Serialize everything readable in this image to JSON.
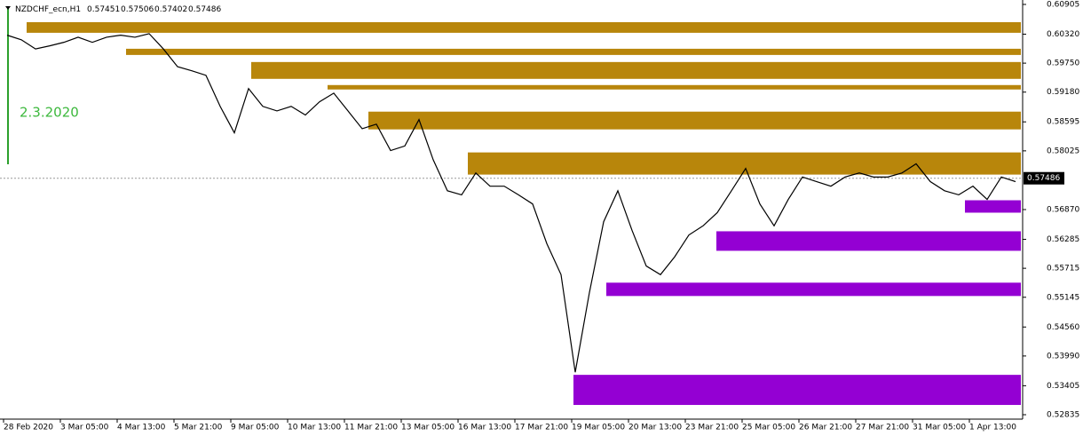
{
  "chart_data": {
    "type": "line",
    "symbol": "NZDCHF_ecn,H1",
    "ohlc": [
      0.57451,
      0.57506,
      0.57402,
      0.57486
    ],
    "annotation": "2.3.2020",
    "last_price": 0.57486,
    "categories": [
      "28 Feb 2020",
      null,
      null,
      null,
      "3 Mar 05:00",
      null,
      null,
      null,
      "4 Mar 13:00",
      null,
      null,
      null,
      "5 Mar 21:00",
      null,
      null,
      null,
      "9 Mar 05:00",
      null,
      null,
      null,
      "10 Mar 13:00",
      null,
      null,
      null,
      "11 Mar 21:00",
      null,
      null,
      null,
      "13 Mar 05:00",
      null,
      null,
      null,
      "16 Mar 13:00",
      null,
      null,
      null,
      "17 Mar 21:00",
      null,
      null,
      null,
      "19 Mar 05:00",
      null,
      null,
      null,
      "20 Mar 13:00",
      null,
      null,
      null,
      "23 Mar 21:00",
      null,
      null,
      null,
      "25 Mar 05:00",
      null,
      null,
      null,
      "26 Mar 21:00",
      null,
      null,
      null,
      "27 Mar 21:00",
      null,
      null,
      null,
      "31 Mar 05:00",
      null,
      null,
      null,
      "1 Apr 13:00",
      null,
      null,
      null
    ],
    "series": [
      {
        "color": "#000000",
        "values": [
          0.603,
          0.6021,
          0.6003,
          0.6009,
          0.6016,
          0.6026,
          0.6016,
          0.6026,
          0.603,
          0.6026,
          0.6033,
          0.6003,
          0.5968,
          0.596,
          0.5951,
          0.589,
          0.5838,
          0.5925,
          0.589,
          0.5881,
          0.589,
          0.5873,
          0.5899,
          0.5916,
          0.5881,
          0.5846,
          0.5855,
          0.5803,
          0.5812,
          0.5864,
          0.5785,
          0.5724,
          0.5716,
          0.5759,
          0.5733,
          0.5733,
          0.5716,
          0.5698,
          0.562,
          0.5559,
          0.5367,
          0.5524,
          0.5663,
          0.5724,
          0.5646,
          0.5576,
          0.5559,
          0.5594,
          0.5637,
          0.5655,
          0.5681,
          0.5724,
          0.5768,
          0.5698,
          0.5655,
          0.5707,
          0.5751,
          0.5742,
          0.5733,
          0.5751,
          0.5759,
          0.5751,
          0.5751,
          0.5759,
          0.5777,
          0.5742,
          0.5724,
          0.5716,
          0.5733,
          0.5707,
          0.5751,
          0.5742
        ]
      }
    ],
    "zones": [
      {
        "top": 0.60556,
        "bottom": 0.60347,
        "color": "#b8860b"
      },
      {
        "top": 0.60033,
        "bottom": 0.59911,
        "color": "#b8860b"
      },
      {
        "top": 0.59772,
        "bottom": 0.59441,
        "color": "#b8860b"
      },
      {
        "top": 0.59319,
        "bottom": 0.59232,
        "color": "#b8860b"
      },
      {
        "top": 0.58796,
        "bottom": 0.58447,
        "color": "#b8860b"
      },
      {
        "top": 0.57994,
        "bottom": 0.57558,
        "color": "#b8860b"
      },
      {
        "top": 0.57053,
        "bottom": 0.56809,
        "color": "#9400d3"
      },
      {
        "top": 0.56443,
        "bottom": 0.56059,
        "color": "#9400d3"
      },
      {
        "top": 0.55432,
        "bottom": 0.5517,
        "color": "#9400d3"
      },
      {
        "top": 0.53619,
        "bottom": 0.53027,
        "color": "#9400d3"
      }
    ],
    "ylim": [
      0.52748,
      0.60992
    ],
    "yticks": [
      0.60905,
      {
        "value": 0.6032,
        "label": "0.60320"
      },
      {
        "value": 0.5975,
        "label": "0.59750"
      },
      {
        "value": 0.5918,
        "label": "0.59180"
      },
      0.58595,
      0.58025,
      {
        "value": 0.5687,
        "label": "0.56870"
      },
      0.56285,
      0.55715,
      0.55145,
      {
        "value": 0.5456,
        "label": "0.54560"
      },
      {
        "value": 0.5399,
        "label": "0.53990"
      },
      0.53405,
      0.52835
    ]
  }
}
